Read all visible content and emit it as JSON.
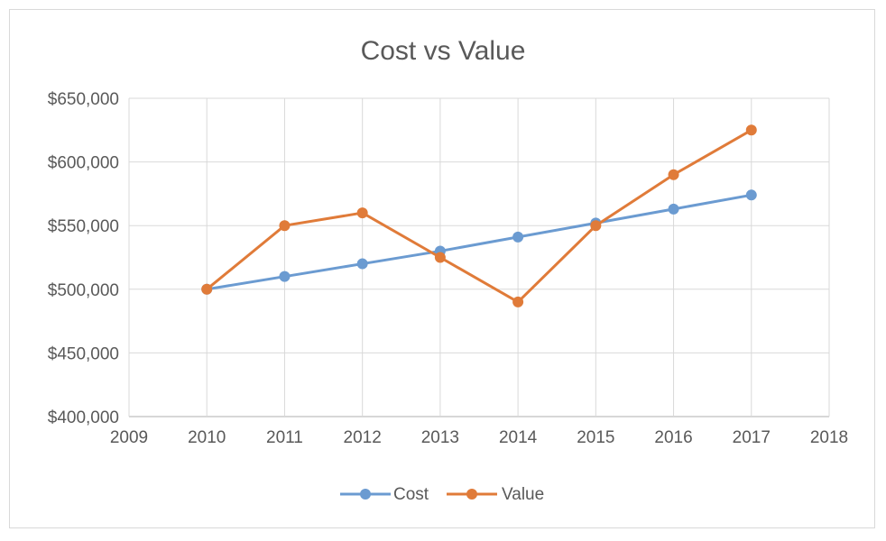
{
  "chart_data": {
    "type": "line",
    "title": "Cost vs Value",
    "xlabel": "",
    "ylabel": "",
    "x": [
      2010,
      2011,
      2012,
      2013,
      2014,
      2015,
      2016,
      2017
    ],
    "xlim": [
      2009,
      2018
    ],
    "ylim": [
      400000,
      650000
    ],
    "x_ticks": [
      "2009",
      "2010",
      "2011",
      "2012",
      "2013",
      "2014",
      "2015",
      "2016",
      "2017",
      "2018"
    ],
    "y_ticks": [
      "$400,000",
      "$450,000",
      "$500,000",
      "$550,000",
      "$600,000",
      "$650,000"
    ],
    "grid": true,
    "legend_position": "bottom",
    "series": [
      {
        "name": "Cost",
        "color": "#6b9bd1",
        "values": [
          500000,
          510000,
          520000,
          530000,
          541000,
          552000,
          563000,
          574000
        ]
      },
      {
        "name": "Value",
        "color": "#e07b39",
        "values": [
          500000,
          550000,
          560000,
          525000,
          490000,
          550000,
          590000,
          625000
        ]
      }
    ]
  }
}
